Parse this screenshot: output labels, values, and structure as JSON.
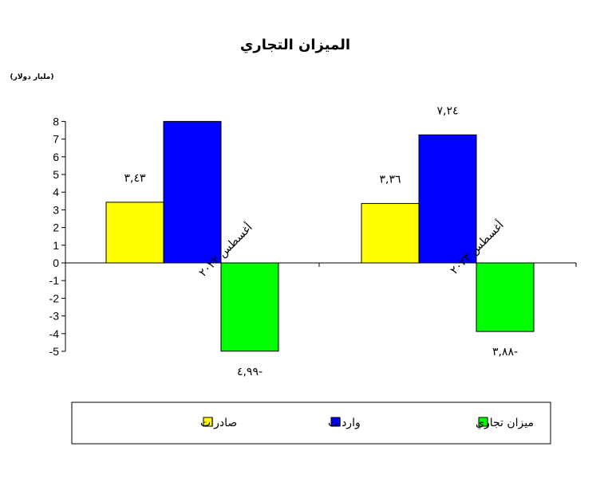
{
  "chart_data": {
    "type": "bar",
    "title": "الميزان التجاري",
    "unit_label": "(مليار دولار)",
    "categories": [
      "أغسطس ٢٠٢٢",
      "أغسطس ٢٠٢٣"
    ],
    "series": [
      {
        "name": "صادرات",
        "color": "#ffff00",
        "values": [
          3.43,
          3.36
        ],
        "labels": [
          "٣,٤٣",
          "٣,٣٦"
        ]
      },
      {
        "name": "واردات",
        "color": "#0000ff",
        "values": [
          8.42,
          7.24
        ],
        "labels": [
          "",
          "٧,٢٤"
        ]
      },
      {
        "name": "ميزان تجاري",
        "color": "#00ff00",
        "values": [
          -4.99,
          -3.88
        ],
        "labels": [
          "٤,٩٩-",
          "٣,٨٨-"
        ]
      }
    ],
    "yticks": [
      "8",
      "7",
      "6",
      "5",
      "4",
      "3",
      "2",
      "1",
      "0",
      "-1",
      "-2",
      "-3",
      "-4",
      "-5"
    ],
    "ylim": [
      -5,
      8
    ],
    "grid": false,
    "legend_position": "bottom"
  }
}
